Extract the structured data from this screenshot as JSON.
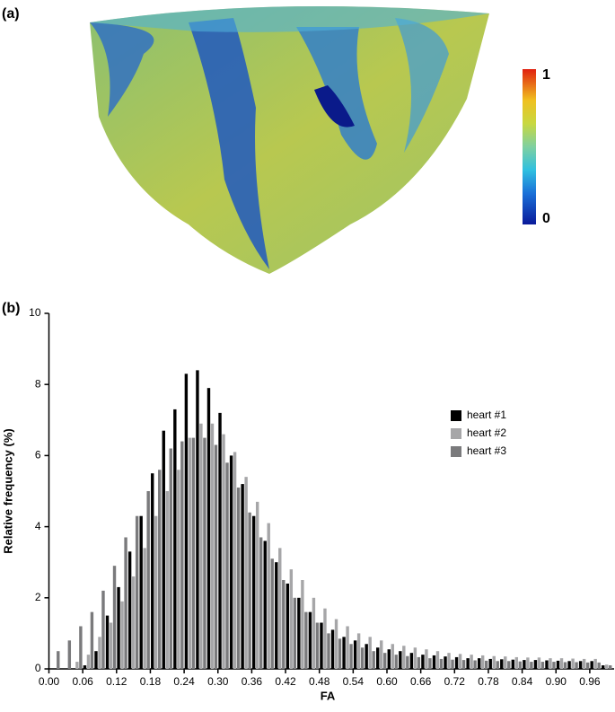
{
  "panel_a": {
    "label": "(a)",
    "colorbar_max": "1",
    "colorbar_min": "0"
  },
  "chart_data": {
    "type": "bar",
    "panel_label": "(b)",
    "x_label": "FA",
    "y_label": "Relative frequency (%)",
    "x": [
      0.01,
      0.03,
      0.05,
      0.07,
      0.09,
      0.11,
      0.13,
      0.15,
      0.17,
      0.19,
      0.21,
      0.23,
      0.25,
      0.27,
      0.29,
      0.31,
      0.33,
      0.35,
      0.37,
      0.39,
      0.41,
      0.43,
      0.45,
      0.47,
      0.49,
      0.51,
      0.53,
      0.55,
      0.57,
      0.59,
      0.61,
      0.63,
      0.65,
      0.67,
      0.69,
      0.71,
      0.73,
      0.75,
      0.77,
      0.79,
      0.81,
      0.83,
      0.85,
      0.87,
      0.89,
      0.91,
      0.93,
      0.95,
      0.97,
      0.99
    ],
    "series": [
      {
        "name": "heart #1",
        "color": "#000000",
        "values": [
          0,
          0,
          0,
          0.1,
          0.5,
          1.5,
          2.3,
          3.3,
          4.3,
          5.5,
          6.7,
          7.3,
          8.3,
          8.4,
          7.9,
          7.2,
          6.0,
          5.2,
          4.3,
          3.6,
          3.0,
          2.4,
          2.0,
          1.6,
          1.3,
          1.1,
          0.9,
          0.8,
          0.7,
          0.6,
          0.55,
          0.5,
          0.45,
          0.4,
          0.38,
          0.35,
          0.33,
          0.3,
          0.3,
          0.28,
          0.27,
          0.26,
          0.25,
          0.25,
          0.24,
          0.23,
          0.22,
          0.22,
          0.22,
          0.1
        ]
      },
      {
        "name": "heart #2",
        "color": "#a6a6a8",
        "values": [
          0,
          0,
          0.2,
          0.4,
          0.9,
          1.3,
          1.9,
          2.6,
          3.4,
          4.3,
          5.0,
          5.6,
          6.5,
          6.9,
          6.9,
          6.6,
          6.1,
          5.4,
          4.7,
          4.1,
          3.4,
          2.8,
          2.5,
          2.0,
          1.7,
          1.4,
          1.2,
          1.0,
          0.9,
          0.8,
          0.7,
          0.65,
          0.6,
          0.55,
          0.5,
          0.45,
          0.42,
          0.4,
          0.38,
          0.36,
          0.35,
          0.33,
          0.32,
          0.32,
          0.3,
          0.3,
          0.29,
          0.28,
          0.28,
          0.12
        ]
      },
      {
        "name": "heart #3",
        "color": "#7a7a7c",
        "values": [
          0.5,
          0.8,
          1.2,
          1.6,
          2.2,
          2.9,
          3.7,
          4.3,
          5.0,
          5.6,
          6.2,
          6.4,
          6.5,
          6.5,
          6.3,
          5.8,
          5.1,
          4.4,
          3.7,
          3.1,
          2.5,
          2.0,
          1.6,
          1.3,
          1.0,
          0.85,
          0.7,
          0.6,
          0.5,
          0.45,
          0.4,
          0.36,
          0.33,
          0.3,
          0.28,
          0.26,
          0.25,
          0.24,
          0.23,
          0.22,
          0.22,
          0.21,
          0.2,
          0.2,
          0.2,
          0.19,
          0.19,
          0.18,
          0.18,
          0.1
        ]
      }
    ],
    "xlim": [
      0,
      1
    ],
    "ylim": [
      0,
      10
    ],
    "xticks": [
      {
        "value": 0,
        "label": "0.00"
      },
      {
        "value": 0.06,
        "label": "0.06"
      },
      {
        "value": 0.12,
        "label": "0.12"
      },
      {
        "value": 0.18,
        "label": "0.18"
      },
      {
        "value": 0.24,
        "label": "0.24"
      },
      {
        "value": 0.3,
        "label": "0.30"
      },
      {
        "value": 0.36,
        "label": "0.36"
      },
      {
        "value": 0.42,
        "label": "0.42"
      },
      {
        "value": 0.48,
        "label": "0.48"
      },
      {
        "value": 0.54,
        "label": "0.54"
      },
      {
        "value": 0.6,
        "label": "0.60"
      },
      {
        "value": 0.66,
        "label": "0.66"
      },
      {
        "value": 0.72,
        "label": "0.72"
      },
      {
        "value": 0.78,
        "label": "0.78"
      },
      {
        "value": 0.84,
        "label": "0.84"
      },
      {
        "value": 0.9,
        "label": "0.90"
      },
      {
        "value": 0.96,
        "label": "0.96"
      }
    ],
    "yticks": [
      0,
      2,
      4,
      6,
      8,
      10
    ],
    "grid": false,
    "legend": "right"
  }
}
